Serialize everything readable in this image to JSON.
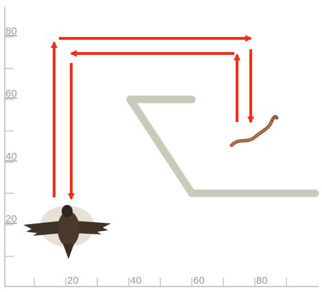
{
  "chart_data": {
    "type": "diagram",
    "y_tick_labels": [
      "20",
      "40",
      "60",
      "80"
    ],
    "x_tick_labels": [
      "20",
      "40",
      "60",
      "80"
    ],
    "colors": {
      "arrow": "#ff2a10",
      "path": "#c9cbb9",
      "axis": "#b8b8b8",
      "label": "#9a9a9a",
      "worm": "#9a5a3a",
      "bird": "#4a3a2c"
    },
    "icons": {
      "bird": "bird-icon",
      "worm": "worm-icon"
    }
  }
}
